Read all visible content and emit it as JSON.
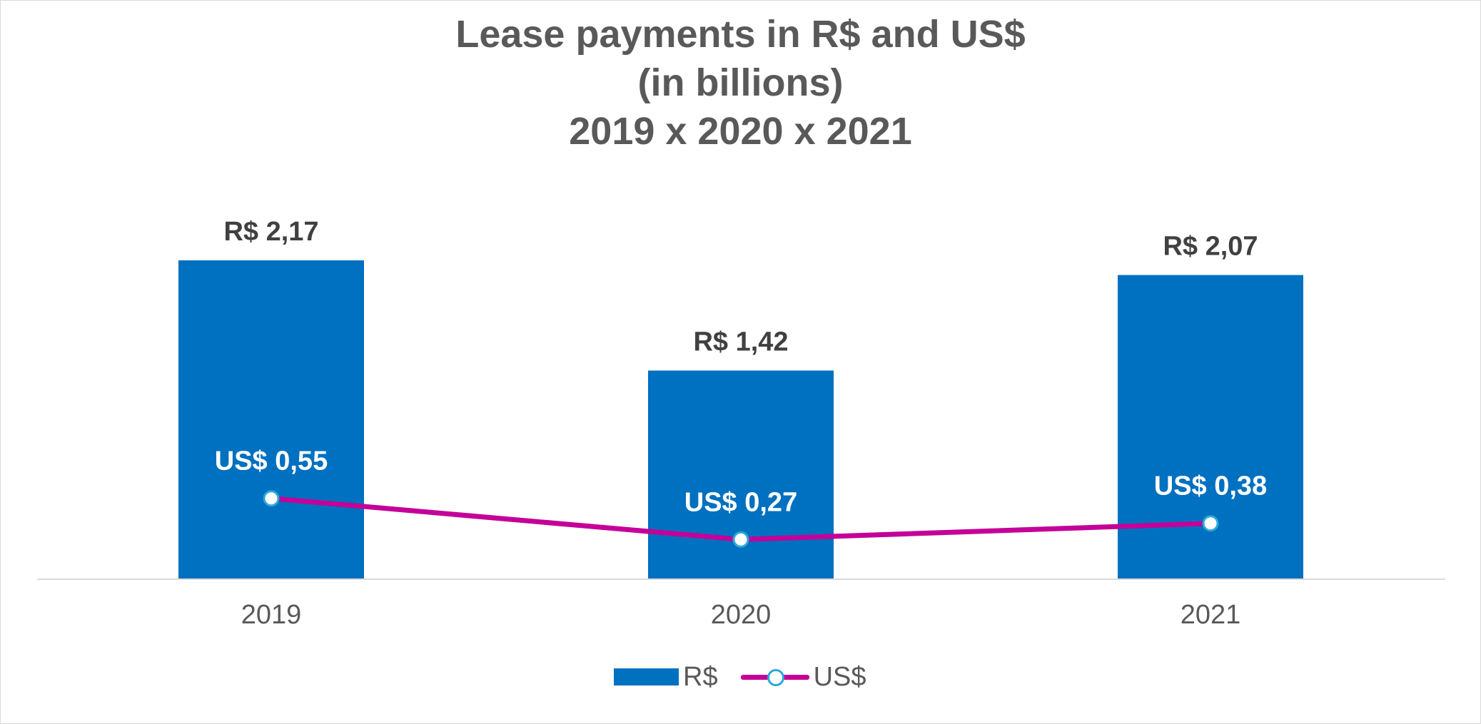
{
  "chart_data": {
    "type": "bar",
    "title_lines": [
      "Lease payments in R$ and US$",
      "(in billions)",
      "2019 x 2020 x 2021"
    ],
    "categories": [
      "2019",
      "2020",
      "2021"
    ],
    "series": [
      {
        "name": "R$",
        "type": "bar",
        "color": "#0070c0",
        "values": [
          2.17,
          1.42,
          2.07
        ],
        "labels": [
          "R$  2,17",
          "R$  1,42",
          "R$  2,07"
        ]
      },
      {
        "name": "US$",
        "type": "line",
        "color": "#c40099",
        "marker_fill": "#ffffff",
        "marker_edge": "#2aa8d8",
        "values": [
          0.55,
          0.27,
          0.38
        ],
        "labels": [
          "US$  0,55",
          "US$  0,27",
          "US$  0,38"
        ]
      }
    ],
    "ylim": [
      0,
      2.5
    ],
    "grid": false,
    "legend_position": "bottom"
  }
}
